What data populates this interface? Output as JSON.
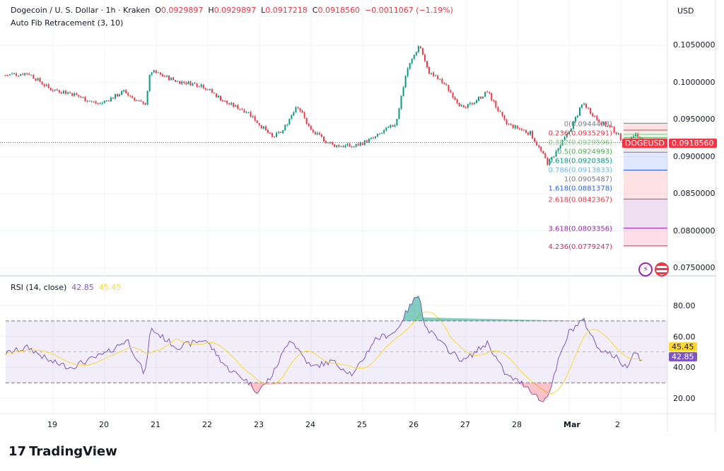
{
  "header": {
    "symbol": "Dogecoin / U. S. Dollar · 1h · Kraken",
    "o_label": "O",
    "o": "0.0929897",
    "h_label": "H",
    "h": "0.0929897",
    "l_label": "L",
    "l": "0.0917218",
    "c_label": "C",
    "c": "0.0918560",
    "change": "−0.0011067 (−1.19%)",
    "indicator": "Auto Fib Retracement (3, 10)"
  },
  "currency": "USD",
  "price_axis": [
    "0.1050000",
    "0.1000000",
    "0.0950000",
    "0.0900000",
    "0.0850000",
    "0.0800000",
    "0.0750000"
  ],
  "last_price": {
    "ticker": "DOGEUSD",
    "value": "0.0918560",
    "color": "#f23645"
  },
  "fib": [
    {
      "label": "0(0.0944498)",
      "price": 0.0944498,
      "color": "#787b86"
    },
    {
      "label": "0.236(0.0935291)",
      "price": 0.0935291,
      "color": "#f23645"
    },
    {
      "label": "0.382(0.0929596)",
      "price": 0.0929596,
      "color": "#81c784"
    },
    {
      "label": "0.5(0.0924993)",
      "price": 0.0924993,
      "color": "#4caf50"
    },
    {
      "label": "0.618(0.0920385)",
      "price": 0.0920385,
      "color": "#089981"
    },
    {
      "label": "0.786(0.0913833)",
      "price": 0.0913833,
      "color": "#64b5f6"
    },
    {
      "label": "1(0.0905487)",
      "price": 0.0905487,
      "color": "#787b86"
    },
    {
      "label": "1.618(0.0881378)",
      "price": 0.0881378,
      "color": "#2962ff"
    },
    {
      "label": "2.618(0.0842367)",
      "price": 0.0842367,
      "color": "#f23645"
    },
    {
      "label": "3.618(0.0803356)",
      "price": 0.0803356,
      "color": "#9c27b0"
    },
    {
      "label": "4.236(0.0779247)",
      "price": 0.0779247,
      "color": "#e91e63"
    }
  ],
  "rsi": {
    "title": "RSI (14, close)",
    "value": "42.85",
    "ma": "45.45",
    "axis": [
      "80.00",
      "60.00",
      "40.00",
      "20.00"
    ],
    "line_color": "#7e57c2",
    "ma_color": "#fdd835"
  },
  "time_axis": [
    "19",
    "20",
    "21",
    "22",
    "23",
    "24",
    "25",
    "26",
    "27",
    "28",
    "Mar",
    "2"
  ],
  "brand": "TradingView",
  "chart_data": {
    "type": "candlestick",
    "title": "Dogecoin / U. S. Dollar · 1h · Kraken",
    "ylim": [
      0.074,
      0.1065
    ],
    "x_unit": "days from 19",
    "price_path": [
      [
        -0.92,
        0.10095
      ],
      [
        -0.48,
        0.1012
      ],
      [
        -0.07,
        0.0991
      ],
      [
        0.34,
        0.0985
      ],
      [
        0.89,
        0.097
      ],
      [
        1.37,
        0.0987
      ],
      [
        1.78,
        0.0968
      ],
      [
        1.89,
        0.1015
      ],
      [
        2.4,
        0.1001
      ],
      [
        2.88,
        0.0996
      ],
      [
        3.36,
        0.0972
      ],
      [
        3.77,
        0.096
      ],
      [
        4.25,
        0.0925
      ],
      [
        4.45,
        0.0934
      ],
      [
        4.73,
        0.097
      ],
      [
        5.0,
        0.0934
      ],
      [
        5.41,
        0.0915
      ],
      [
        5.82,
        0.0913
      ],
      [
        6.23,
        0.0925
      ],
      [
        6.64,
        0.0944
      ],
      [
        6.85,
        0.1015
      ],
      [
        7.1,
        0.1051
      ],
      [
        7.26,
        0.1015
      ],
      [
        7.6,
        0.0996
      ],
      [
        7.95,
        0.0963
      ],
      [
        8.42,
        0.0987
      ],
      [
        8.77,
        0.0944
      ],
      [
        9.25,
        0.0931
      ],
      [
        9.59,
        0.089
      ],
      [
        9.79,
        0.091
      ],
      [
        10.0,
        0.0934
      ],
      [
        10.27,
        0.0972
      ],
      [
        10.55,
        0.0949
      ],
      [
        10.89,
        0.0934
      ],
      [
        11.1,
        0.0915
      ],
      [
        11.27,
        0.0931
      ],
      [
        11.44,
        0.0918
      ]
    ],
    "rsi_path": [
      [
        -0.92,
        49
      ],
      [
        -0.48,
        53
      ],
      [
        -0.07,
        44
      ],
      [
        0.34,
        40
      ],
      [
        1.03,
        49
      ],
      [
        1.44,
        58
      ],
      [
        1.78,
        35
      ],
      [
        1.89,
        65
      ],
      [
        2.4,
        53
      ],
      [
        2.95,
        58
      ],
      [
        3.36,
        40
      ],
      [
        3.77,
        31
      ],
      [
        3.97,
        24
      ],
      [
        4.25,
        35
      ],
      [
        4.59,
        59
      ],
      [
        5.0,
        40
      ],
      [
        5.41,
        44
      ],
      [
        5.82,
        35
      ],
      [
        6.23,
        58
      ],
      [
        6.64,
        63
      ],
      [
        6.85,
        76
      ],
      [
        7.1,
        89
      ],
      [
        7.19,
        67
      ],
      [
        7.6,
        53
      ],
      [
        7.95,
        44
      ],
      [
        8.42,
        56
      ],
      [
        8.77,
        35
      ],
      [
        9.18,
        28
      ],
      [
        9.49,
        17
      ],
      [
        9.66,
        28
      ],
      [
        9.79,
        44
      ],
      [
        10.0,
        63
      ],
      [
        10.27,
        71
      ],
      [
        10.55,
        53
      ],
      [
        10.89,
        47
      ],
      [
        11.1,
        40
      ],
      [
        11.27,
        51
      ],
      [
        11.44,
        43
      ]
    ],
    "rsi_levels": [
      70,
      50,
      30
    ],
    "rsi_ylim": [
      10,
      95
    ]
  }
}
